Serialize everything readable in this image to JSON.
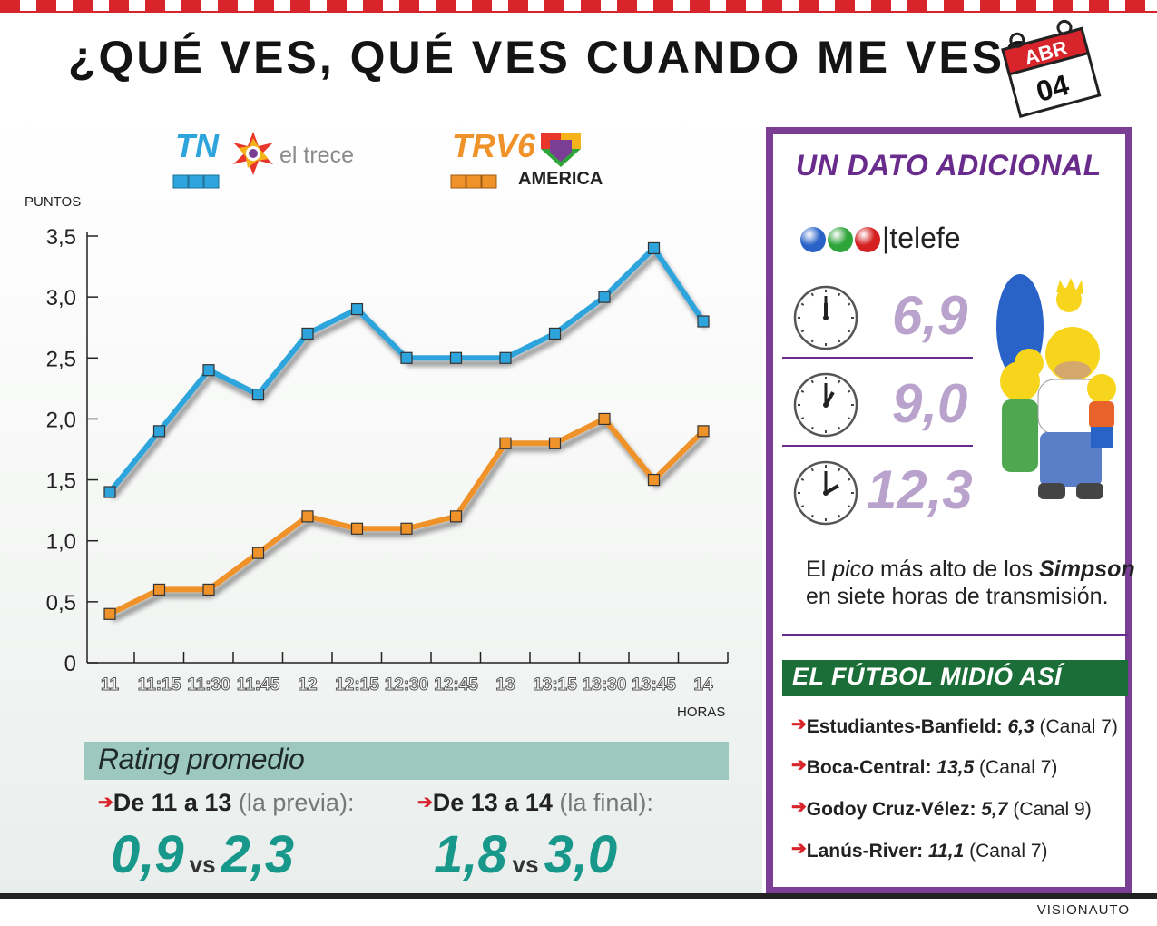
{
  "title": "¿QUÉ VES, QUÉ VES CUANDO ME VES?",
  "calendar": {
    "month": "ABR",
    "day": "04"
  },
  "legend": [
    {
      "series": "TN",
      "channel": "el trece",
      "color": "#2ea4dc"
    },
    {
      "series": "TRV6",
      "channel": "AMERICA",
      "color": "#f0922a"
    }
  ],
  "chart_data": {
    "type": "line",
    "ylabel": "PUNTOS",
    "xlabel": "HORAS",
    "ylim": [
      0,
      3.5
    ],
    "yticks": [
      "0",
      "0,5",
      "1,0",
      "1,5",
      "2,0",
      "2,5",
      "3,0",
      "3,5"
    ],
    "categories": [
      "11",
      "11:15",
      "11:30",
      "11:45",
      "12",
      "12:15",
      "12:30",
      "12:45",
      "13",
      "13:15",
      "13:30",
      "13:45",
      "14"
    ],
    "series": [
      {
        "name": "TN",
        "color": "#2ea4dc",
        "values": [
          1.4,
          1.9,
          2.4,
          2.2,
          2.7,
          2.9,
          2.5,
          2.5,
          2.5,
          2.7,
          3.0,
          3.4,
          2.8
        ]
      },
      {
        "name": "TRV6",
        "color": "#f0922a",
        "values": [
          0.4,
          0.6,
          0.6,
          0.9,
          1.2,
          1.1,
          1.1,
          1.2,
          1.8,
          1.8,
          2.0,
          1.5,
          1.9
        ]
      }
    ],
    "grid": false,
    "legend_position": "top"
  },
  "rating": {
    "title": "Rating promedio",
    "items": [
      {
        "label": "De 11 a 13",
        "note": "(la previa):",
        "v1": "0,9",
        "vs": "vs",
        "v2": "2,3"
      },
      {
        "label": "De 13 a 14",
        "note": "(la final):",
        "v1": "1,8",
        "vs": "vs",
        "v2": "3,0"
      }
    ]
  },
  "side": {
    "title": "UN DATO ADICIONAL",
    "channel": "telefe",
    "dot_colors": [
      "#2a63c8",
      "#2ea43a",
      "#d42020"
    ],
    "clocks": [
      {
        "value": "6,9",
        "hour": 12,
        "minute": 0
      },
      {
        "value": "9,0",
        "hour": 1,
        "minute": 0
      },
      {
        "value": "12,3",
        "hour": 2,
        "minute": 0
      }
    ],
    "text_pre": "El ",
    "text_pico": "pico",
    "text_mid": " más alto de los ",
    "text_simpson": "Simpson",
    "text_line2": "en siete horas de transmisión."
  },
  "futbol": {
    "title": "EL FÚTBOL MIDIÓ ASÍ",
    "matches": [
      {
        "teams": "Estudiantes-Banfield:",
        "score": "6,3",
        "channel": "(Canal 7)"
      },
      {
        "teams": "Boca-Central:",
        "score": "13,5",
        "channel": "(Canal 7)"
      },
      {
        "teams": "Godoy Cruz-Vélez:",
        "score": "5,7",
        "channel": "(Canal 9)"
      },
      {
        "teams": "Lanús-River:",
        "score": "11,1",
        "channel": "(Canal 7)"
      }
    ]
  },
  "credit": "VISIONAUTO"
}
